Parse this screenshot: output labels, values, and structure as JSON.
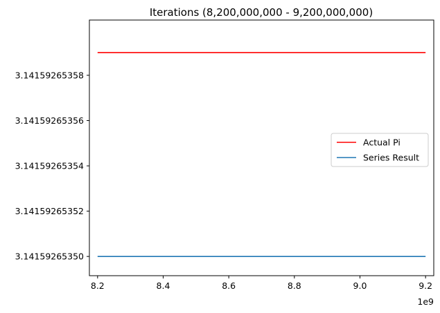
{
  "chart_data": {
    "type": "line",
    "title": "Iterations (8,200,000,000 - 9,200,000,000)",
    "xlabel": "",
    "ylabel": "",
    "x_offset_label": "1e9",
    "xlim": [
      8.175,
      9.225
    ],
    "ylim": [
      3.1415926534915,
      3.1415926536044
    ],
    "xticks": [
      8.2,
      8.4,
      8.6,
      8.8,
      9.0,
      9.2
    ],
    "xtick_labels": [
      "8.2",
      "8.4",
      "8.6",
      "8.8",
      "9.0",
      "9.2"
    ],
    "yticks": [
      3.1415926535,
      3.14159265352,
      3.14159265354,
      3.14159265356,
      3.14159265358
    ],
    "ytick_labels": [
      "3.14159265350",
      "3.14159265352",
      "3.14159265354",
      "3.14159265356",
      "3.14159265358"
    ],
    "series": [
      {
        "name": "Actual Pi",
        "color": "#ff0000",
        "x": [
          8.2,
          9.2
        ],
        "y": [
          3.14159265359,
          3.14159265359
        ]
      },
      {
        "name": "Series Result",
        "color": "#1f77b4",
        "x": [
          8.2,
          9.2
        ],
        "y": [
          3.1415926535,
          3.1415926535
        ]
      }
    ],
    "grid": false,
    "legend_position": "center-right"
  }
}
